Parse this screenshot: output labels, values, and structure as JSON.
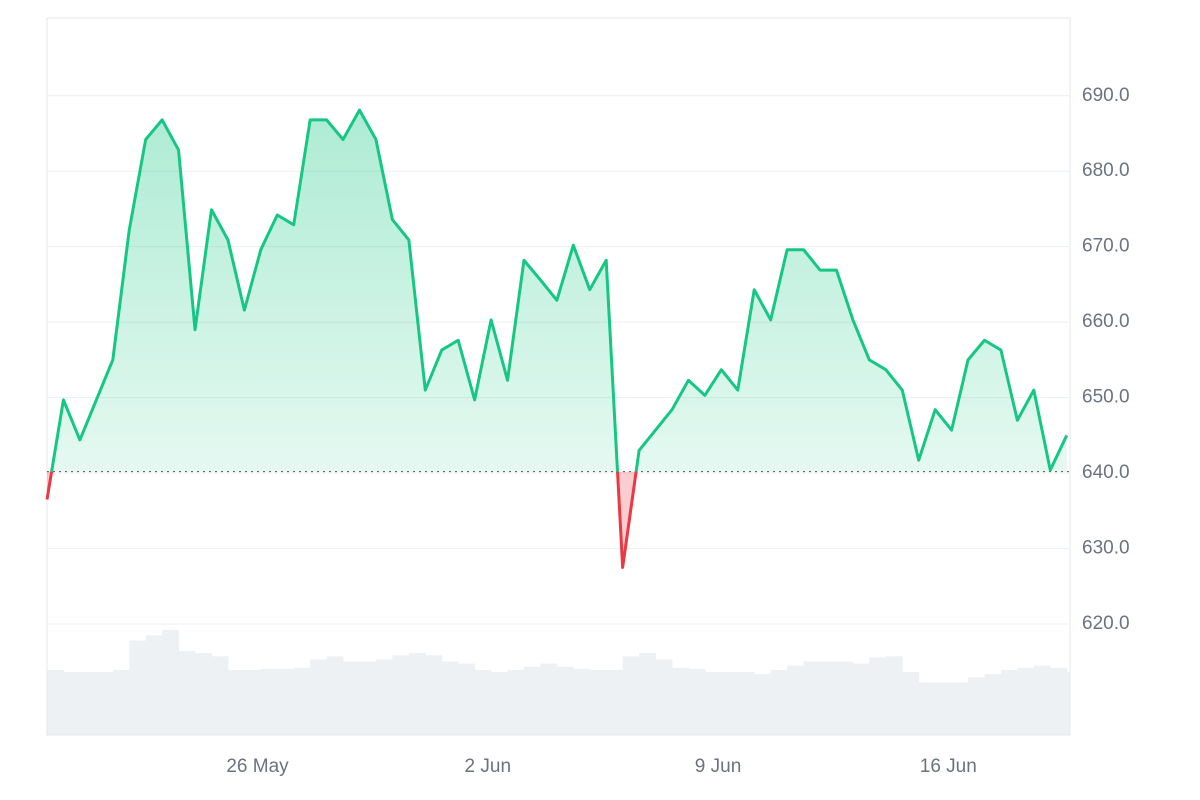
{
  "chart_data": {
    "type": "line",
    "x": [
      19.6,
      20.1,
      20.6,
      21.1,
      21.6,
      22.1,
      22.6,
      23.1,
      23.6,
      24.1,
      24.6,
      25.1,
      25.6,
      26.1,
      26.6,
      27.1,
      27.6,
      28.1,
      28.6,
      29.1,
      29.6,
      30.1,
      30.6,
      31.1,
      31.6,
      32.1,
      32.6,
      33.1,
      33.6,
      34.1,
      34.6,
      35.1,
      35.6,
      36.1,
      36.6,
      37.1,
      37.6,
      38.1,
      38.6,
      39.1,
      39.6,
      40.1,
      40.6,
      41.1,
      41.6,
      42.1,
      42.6,
      43.1,
      43.6,
      44.1,
      44.6,
      45.1,
      45.6,
      46.1,
      46.6,
      47.1,
      47.6,
      48.1,
      48.6,
      49.1,
      49.6,
      50.1,
      50.6
    ],
    "series": [
      {
        "values": [
          636.5,
          649.7,
          644.4,
          649.7,
          655,
          672.2,
          684.2,
          686.8,
          682.8,
          659,
          674.9,
          670.9,
          661.6,
          669.6,
          674.2,
          672.9,
          686.8,
          686.8,
          684.2,
          688.1,
          684.2,
          673.6,
          670.9,
          651,
          656.3,
          657.6,
          649.7,
          660.3,
          652.3,
          668.2,
          665.6,
          662.9,
          670.2,
          664.3,
          668.2,
          627.5,
          643,
          645.7,
          648.4,
          652.3,
          650.3,
          653.7,
          651,
          664.3,
          660.3,
          669.6,
          669.6,
          666.9,
          666.9,
          660.3,
          655,
          653.7,
          651,
          641.7,
          648.4,
          645.7,
          655,
          657.6,
          656.3,
          647,
          651,
          640.4,
          645
        ],
        "color": "#16c784",
        "down_color": "#ea3943"
      }
    ],
    "baseline": 640.2,
    "volume": {
      "values": [
        62,
        60,
        60,
        60,
        62,
        90,
        95,
        100,
        80,
        78,
        75,
        62,
        62,
        63,
        63,
        64,
        72,
        75,
        70,
        70,
        72,
        76,
        78,
        76,
        70,
        68,
        62,
        60,
        62,
        65,
        68,
        65,
        63,
        62,
        62,
        75,
        78,
        72,
        64,
        63,
        60,
        60,
        60,
        58,
        62,
        66,
        70,
        70,
        70,
        68,
        74,
        75,
        60,
        50,
        50,
        50,
        55,
        58,
        62,
        64,
        66,
        64,
        60
      ],
      "color": "#eef1f4"
    },
    "xlim": [
      19.6,
      50.7
    ],
    "xticks": [
      {
        "value": 26,
        "label": "26 May"
      },
      {
        "value": 33,
        "label": "2 Jun"
      },
      {
        "value": 40,
        "label": "9 Jun"
      },
      {
        "value": 47,
        "label": "16 Jun"
      }
    ],
    "ylim": [
      605.3,
      700.3
    ],
    "yticks": [
      {
        "value": 620,
        "label": "620.0"
      },
      {
        "value": 630,
        "label": "630.0"
      },
      {
        "value": 640,
        "label": "640.0"
      },
      {
        "value": 650,
        "label": "650.0"
      },
      {
        "value": 660,
        "label": "660.0"
      },
      {
        "value": 670,
        "label": "670.0"
      },
      {
        "value": 680,
        "label": "680.0"
      },
      {
        "value": 690,
        "label": "690.0"
      }
    ],
    "grid": true
  }
}
